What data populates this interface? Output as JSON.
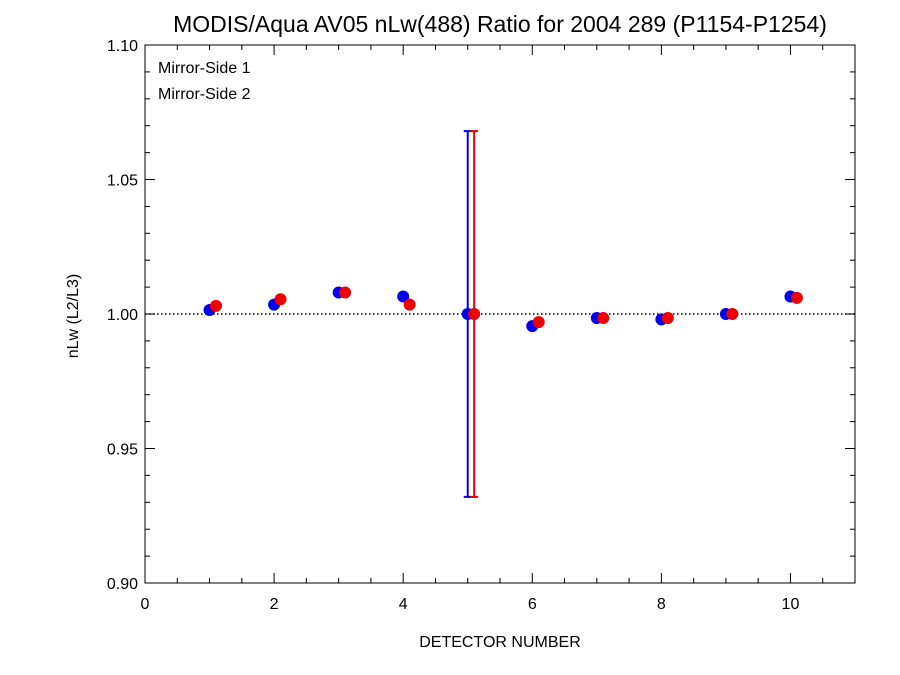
{
  "chart_data": {
    "type": "scatter",
    "title": "MODIS/Aqua AV05 nLw(488) Ratio for 2004 289 (P1154-P1254)",
    "xlabel": "DETECTOR NUMBER",
    "ylabel": "nLw (L2/L3)",
    "xlim": [
      0,
      11
    ],
    "ylim": [
      0.9,
      1.1
    ],
    "x_ticks": [
      0,
      2,
      4,
      6,
      8,
      10
    ],
    "y_ticks": [
      0.9,
      0.95,
      1.0,
      1.05,
      1.1
    ],
    "x_tick_labels": [
      "0",
      "2",
      "4",
      "6",
      "8",
      "10"
    ],
    "y_tick_labels": [
      "0.90",
      "0.95",
      "1.00",
      "1.05",
      "1.10"
    ],
    "reference_line": 1.0,
    "legend_position": "top-left",
    "series": [
      {
        "name": "Mirror-Side 1",
        "color": "#0000ee",
        "x": [
          1,
          2,
          3,
          4,
          5,
          6,
          7,
          8,
          9,
          10
        ],
        "y": [
          1.0015,
          1.0035,
          1.008,
          1.0065,
          1.0,
          0.9955,
          0.9985,
          0.998,
          1.0,
          1.0065
        ],
        "error_bars": [
          {
            "x": 5,
            "low": 0.932,
            "high": 1.068
          }
        ]
      },
      {
        "name": "Mirror-Side 2",
        "color": "#ee0000",
        "x": [
          1.1,
          2.1,
          3.1,
          4.1,
          5.1,
          6.1,
          7.1,
          8.1,
          9.1,
          10.1
        ],
        "y": [
          1.003,
          1.0055,
          1.008,
          1.0035,
          1.0,
          0.997,
          0.9985,
          0.9985,
          1.0,
          1.006
        ],
        "error_bars": [
          {
            "x": 5.1,
            "low": 0.932,
            "high": 1.068
          }
        ]
      }
    ]
  }
}
